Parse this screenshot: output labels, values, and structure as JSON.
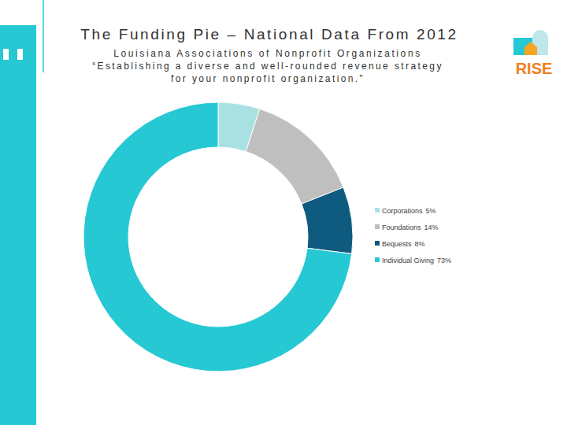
{
  "chart_data": {
    "type": "donut",
    "title": "The Funding Pie – National Data From 2012",
    "subtitle": "Louisiana Associations of Nonprofit Organizations",
    "annotations": [
      "“Establishing a diverse and well-rounded revenue strategy",
      "for your nonprofit organization.”"
    ],
    "categories": [
      "Corporations",
      "Foundations",
      "Bequests",
      "Individual Giving"
    ],
    "values": [
      5,
      14,
      8,
      73
    ],
    "value_labels": [
      "5%",
      "14%",
      "8%",
      "73%"
    ],
    "colors": [
      "#a9e1e3",
      "#bfbfbf",
      "#0f5a7f",
      "#26c8d4"
    ],
    "legend": "right"
  },
  "logo": {
    "text": "RISE"
  }
}
